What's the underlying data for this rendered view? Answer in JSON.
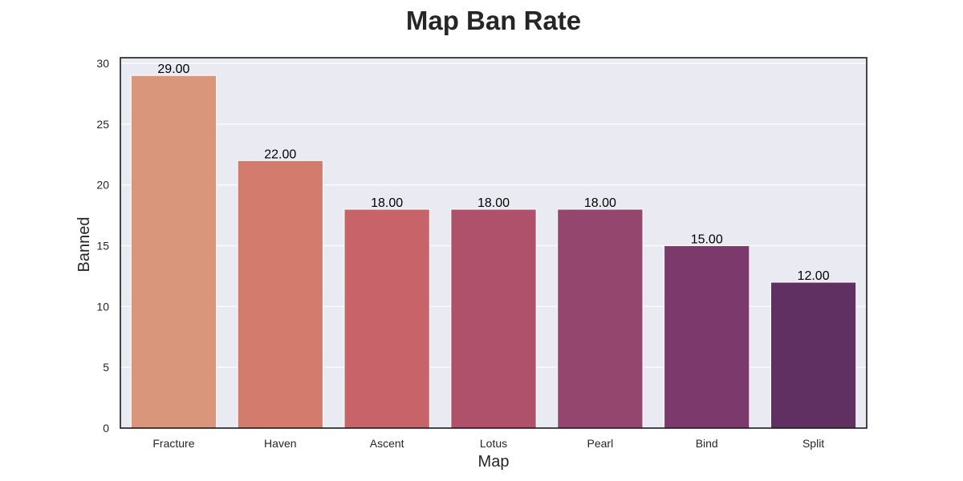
{
  "chart_data": {
    "type": "bar",
    "title": "Map Ban Rate",
    "xlabel": "Map",
    "ylabel": "Banned",
    "categories": [
      "Fracture",
      "Haven",
      "Ascent",
      "Lotus",
      "Pearl",
      "Bind",
      "Split"
    ],
    "values": [
      29,
      22,
      18,
      18,
      18,
      15,
      12
    ],
    "value_labels": [
      "29.00",
      "22.00",
      "18.00",
      "18.00",
      "18.00",
      "15.00",
      "12.00"
    ],
    "ylim": [
      0,
      30
    ],
    "yticks": [
      0,
      5,
      10,
      15,
      20,
      25,
      30
    ],
    "grid": true,
    "legend": "none",
    "colors": [
      "#d9967a",
      "#d37b6d",
      "#c8636a",
      "#b0516c",
      "#95466f",
      "#7b3a6b",
      "#5f3061"
    ],
    "background": "#eaeaf2",
    "grid_color": "#ffffff"
  }
}
